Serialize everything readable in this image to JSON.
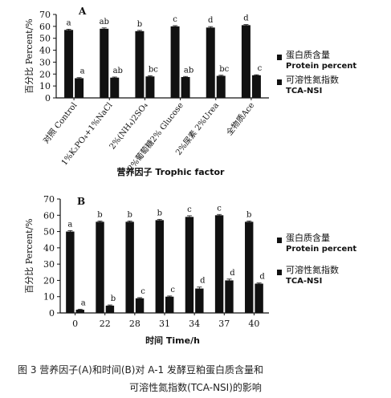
{
  "chart_data": [
    {
      "type": "bar",
      "panel": "A",
      "categories": [
        "对照 Control",
        "1%K₂PO₄+1%NaCl",
        "2%(NH₄)2SO₄",
        "2%葡萄糖2% Glucose",
        "2%尿素 2%Urea",
        "全物质Ace"
      ],
      "series": [
        {
          "name": "蛋白质含量 Protein percent",
          "values": [
            57,
            58,
            56,
            60,
            59,
            61
          ],
          "errors": [
            0.6,
            0.7,
            0.6,
            0.6,
            0.8,
            0.5
          ],
          "labels": [
            "a",
            "ab",
            "b",
            "c",
            "d",
            "d"
          ]
        },
        {
          "name": "可溶性氮指数 TCA-NSI",
          "values": [
            16.5,
            17,
            18,
            17.5,
            18.5,
            19
          ],
          "errors": [
            0.5,
            0.5,
            0.6,
            0.5,
            0.5,
            0.4
          ],
          "labels": [
            "a",
            "ab",
            "bc",
            "ab",
            "bc",
            "c"
          ]
        }
      ],
      "xlabel": "营养因子 Trophic factor",
      "ylabel": "百分比 Percent/%",
      "ylim": [
        0,
        70
      ],
      "yticks": [
        "0",
        "10",
        "20",
        "30",
        "40",
        "50",
        "60",
        "70"
      ],
      "grid": false,
      "legend_position": "right"
    },
    {
      "type": "bar",
      "panel": "B",
      "categories": [
        "0",
        "22",
        "28",
        "31",
        "34",
        "37",
        "40"
      ],
      "series": [
        {
          "name": "蛋白质含量 Protein percent",
          "values": [
            50,
            56,
            56,
            57,
            59,
            60,
            56
          ],
          "errors": [
            0.6,
            0.5,
            0.5,
            0.5,
            0.7,
            0.5,
            0.5
          ],
          "labels": [
            "a",
            "b",
            "b",
            "b",
            "c",
            "c",
            "b"
          ]
        },
        {
          "name": "可溶性氮指数 TCA-NSI",
          "values": [
            2,
            4.5,
            9,
            10,
            15,
            20,
            18
          ],
          "errors": [
            0.3,
            0.4,
            0.4,
            0.4,
            0.9,
            0.8,
            0.4
          ],
          "labels": [
            "a",
            "b",
            "c",
            "c",
            "d",
            "d",
            "d"
          ]
        }
      ],
      "xlabel": "时间 Time/h",
      "ylabel": "百分比 Percent/%",
      "ylim": [
        0,
        70
      ],
      "yticks": [
        "0",
        "10",
        "20",
        "30",
        "40",
        "50",
        "60",
        "70"
      ],
      "grid": false,
      "legend_position": "right"
    }
  ],
  "caption": {
    "line1": "图 3   营养因子(A)和时间(B)对 A-1 发酵豆粕蛋白质含量和",
    "line2": "可溶性氮指数(TCA-NSI)的影响"
  },
  "colors": {
    "bars": "#111111",
    "axis": "#111111",
    "text": "#111111"
  }
}
